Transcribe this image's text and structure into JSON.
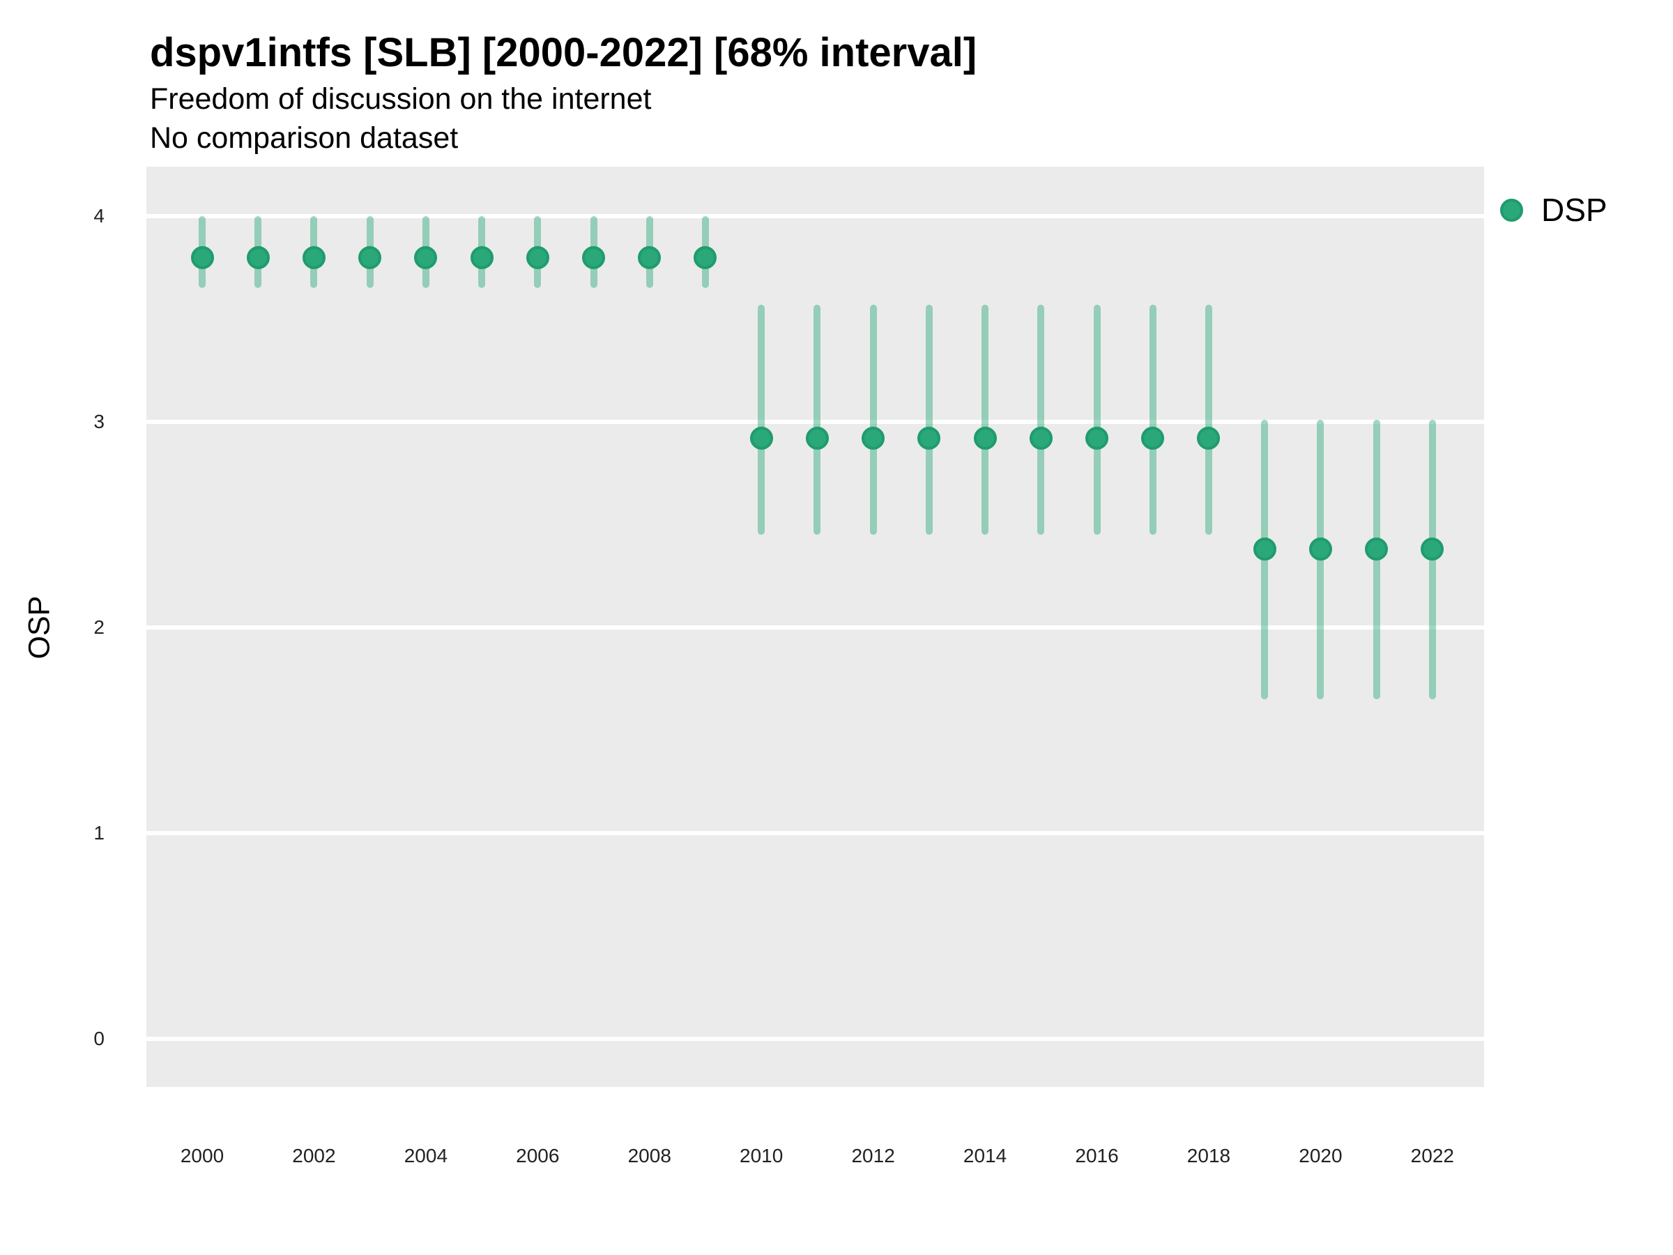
{
  "header": {
    "title": "dspv1intfs [SLB] [2000-2022] [68% interval]",
    "subtitle": "Freedom of discussion on the internet",
    "comparison_note": "No comparison dataset"
  },
  "axes": {
    "y_title": "OSP",
    "y_tick_labels": [
      "0",
      "1",
      "2",
      "3",
      "4"
    ],
    "x_tick_labels": [
      "2000",
      "2002",
      "2004",
      "2006",
      "2008",
      "2010",
      "2012",
      "2014",
      "2016",
      "2018",
      "2020",
      "2022"
    ]
  },
  "legend": {
    "items": [
      {
        "label": "DSP",
        "icon": "legend-point-icon",
        "color": "#2aa87a"
      }
    ]
  },
  "colors": {
    "point_fill": "#2aa87a",
    "point_stroke": "#1f9c6d",
    "interval_band": "rgba(42,168,122,0.45)",
    "panel_background": "#ebebeb",
    "gridline": "#ffffff",
    "title_text": "#000000",
    "tick_text": "#222222"
  },
  "chart_data": {
    "type": "pointrange",
    "title": "dspv1intfs [SLB] [2000-2022] [68% interval]",
    "subtitle": "Freedom of discussion on the internet",
    "note": "No comparison dataset",
    "xlabel": "",
    "ylabel": "OSP",
    "interval_level": "68%",
    "x_range": [
      2000,
      2022
    ],
    "ylim": [
      -0.23,
      4.24
    ],
    "y_ticks": [
      0,
      1,
      2,
      3,
      4
    ],
    "x_ticks_shown": [
      2000,
      2002,
      2004,
      2006,
      2008,
      2010,
      2012,
      2014,
      2016,
      2018,
      2020,
      2022
    ],
    "grid": "major-only",
    "legend_position": "right",
    "series": [
      {
        "name": "DSP",
        "points": [
          {
            "year": 2000,
            "est": 3.8,
            "lo": 3.65,
            "hi": 4.0
          },
          {
            "year": 2001,
            "est": 3.8,
            "lo": 3.65,
            "hi": 4.0
          },
          {
            "year": 2002,
            "est": 3.8,
            "lo": 3.65,
            "hi": 4.0
          },
          {
            "year": 2003,
            "est": 3.8,
            "lo": 3.65,
            "hi": 4.0
          },
          {
            "year": 2004,
            "est": 3.8,
            "lo": 3.65,
            "hi": 4.0
          },
          {
            "year": 2005,
            "est": 3.8,
            "lo": 3.65,
            "hi": 4.0
          },
          {
            "year": 2006,
            "est": 3.8,
            "lo": 3.65,
            "hi": 4.0
          },
          {
            "year": 2007,
            "est": 3.8,
            "lo": 3.65,
            "hi": 4.0
          },
          {
            "year": 2008,
            "est": 3.8,
            "lo": 3.65,
            "hi": 4.0
          },
          {
            "year": 2009,
            "est": 3.8,
            "lo": 3.65,
            "hi": 4.0
          },
          {
            "year": 2010,
            "est": 2.92,
            "lo": 2.45,
            "hi": 3.57
          },
          {
            "year": 2011,
            "est": 2.92,
            "lo": 2.45,
            "hi": 3.57
          },
          {
            "year": 2012,
            "est": 2.92,
            "lo": 2.45,
            "hi": 3.57
          },
          {
            "year": 2013,
            "est": 2.92,
            "lo": 2.45,
            "hi": 3.57
          },
          {
            "year": 2014,
            "est": 2.92,
            "lo": 2.45,
            "hi": 3.57
          },
          {
            "year": 2015,
            "est": 2.92,
            "lo": 2.45,
            "hi": 3.57
          },
          {
            "year": 2016,
            "est": 2.92,
            "lo": 2.45,
            "hi": 3.57
          },
          {
            "year": 2017,
            "est": 2.92,
            "lo": 2.45,
            "hi": 3.57
          },
          {
            "year": 2018,
            "est": 2.92,
            "lo": 2.45,
            "hi": 3.57
          },
          {
            "year": 2019,
            "est": 2.38,
            "lo": 1.65,
            "hi": 3.01
          },
          {
            "year": 2020,
            "est": 2.38,
            "lo": 1.65,
            "hi": 3.01
          },
          {
            "year": 2021,
            "est": 2.38,
            "lo": 1.65,
            "hi": 3.01
          },
          {
            "year": 2022,
            "est": 2.38,
            "lo": 1.65,
            "hi": 3.01
          }
        ]
      }
    ]
  }
}
